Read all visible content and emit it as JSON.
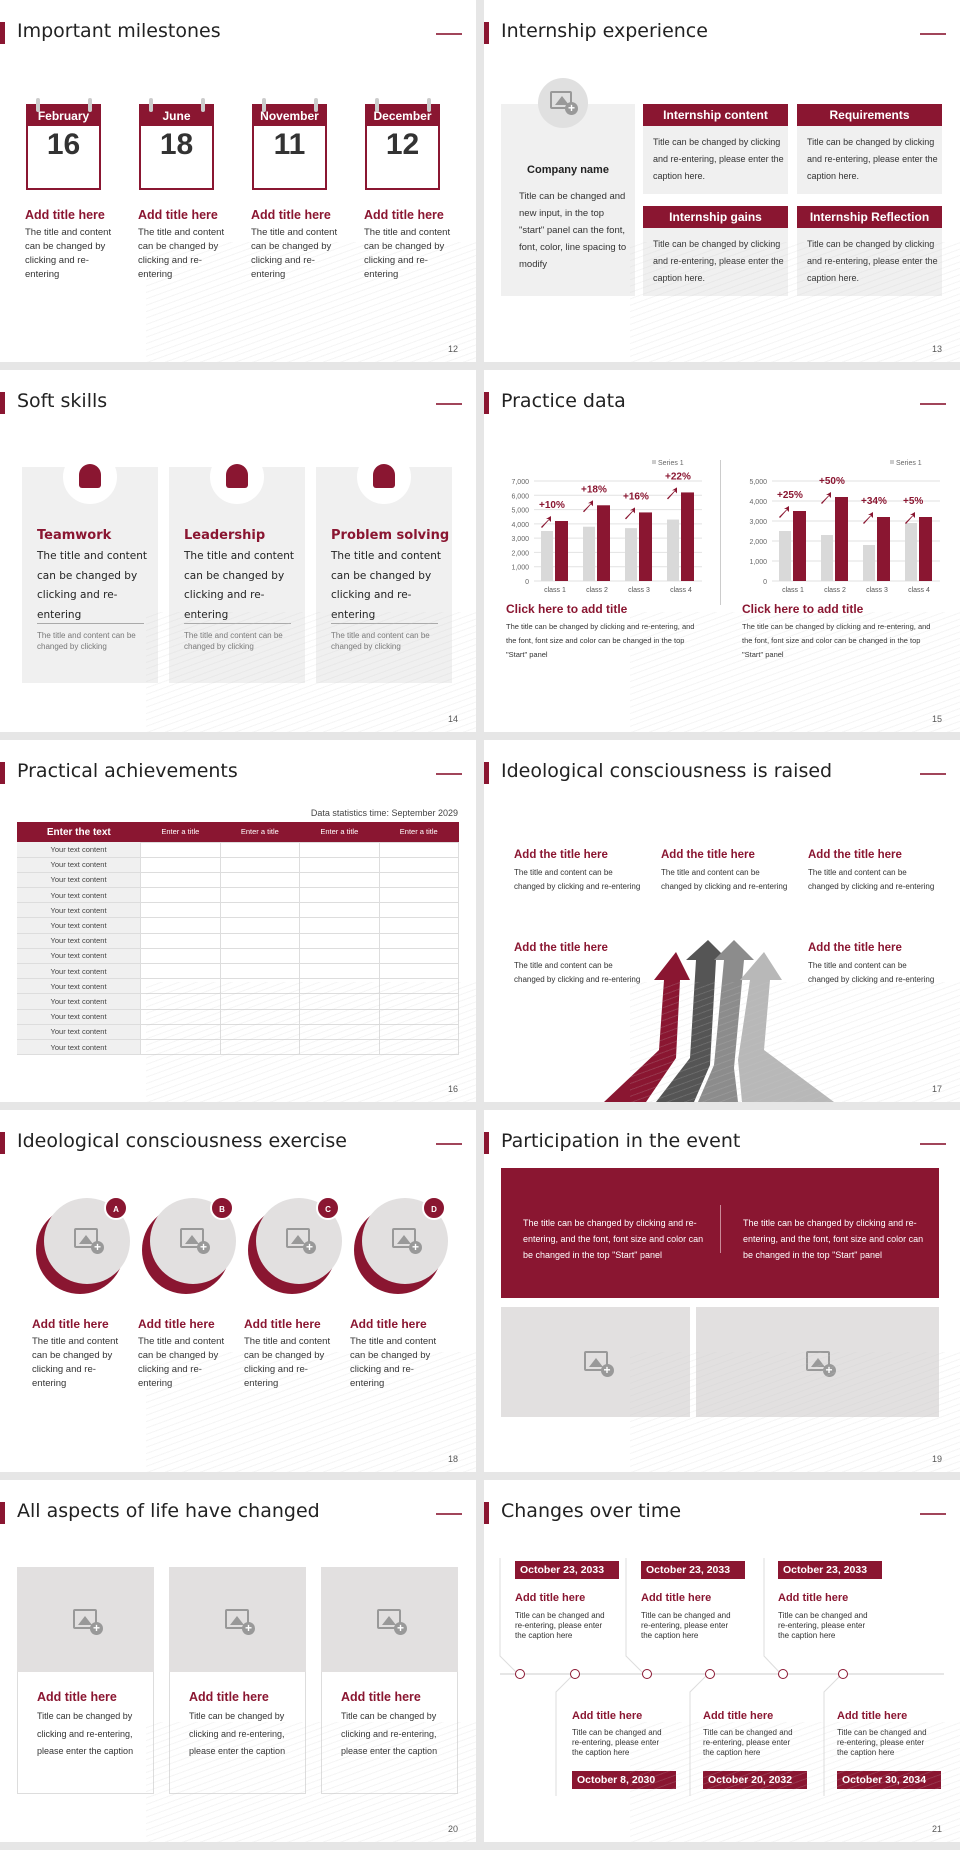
{
  "colors": {
    "accent": "#8a1631",
    "grey": "#d9d9d9",
    "panel": "#f0f0f0"
  },
  "slides": {
    "s12": {
      "title": "Important milestones",
      "page": "12",
      "items": [
        {
          "month": "February",
          "day": "16",
          "heading": "Add title here",
          "text": "The title and content can be changed by clicking and re-entering"
        },
        {
          "month": "June",
          "day": "18",
          "heading": "Add title here",
          "text": "The title and content can be changed by clicking and re-entering"
        },
        {
          "month": "November",
          "day": "11",
          "heading": "Add title here",
          "text": "The title and content can be changed by clicking and re-entering"
        },
        {
          "month": "December",
          "day": "12",
          "heading": "Add title here",
          "text": "The title and content can be changed by clicking and re-entering"
        }
      ]
    },
    "s13": {
      "title": "Internship experience",
      "page": "13",
      "company": "Company name",
      "company_text": "Title can be changed and new input, in the top \"start\" panel can the font, font, color, line spacing to modify",
      "cards": [
        {
          "label": "Internship content",
          "text": "Title can be changed by clicking and re-entering, please enter the caption here."
        },
        {
          "label": "Requirements",
          "text": "Title can be changed by clicking and re-entering, please enter the caption here."
        },
        {
          "label": "Internship gains",
          "text": "Title can be changed by clicking and re-entering, please enter the caption here."
        },
        {
          "label": "Internship Reflection",
          "text": "Title can be changed by clicking and re-entering, please enter the caption here."
        }
      ]
    },
    "s14": {
      "title": "Soft skills",
      "page": "14",
      "cards": [
        {
          "icon": "team-star-icon",
          "heading": "Teamwork",
          "text": "The title and content can be changed by clicking and re-entering",
          "note": "The title and content can be changed by clicking"
        },
        {
          "icon": "podium-speaker-icon",
          "heading": "Leadership",
          "text": "The title and content can be changed by clicking and re-entering",
          "note": "The title and content can be changed by clicking"
        },
        {
          "icon": "person-question-icon",
          "heading": "Problem solving",
          "text": "The title and content can be changed by clicking and re-entering",
          "note": "The title and content can be changed by clicking"
        }
      ]
    },
    "s15": {
      "title": "Practice data",
      "page": "15",
      "blocks": [
        {
          "heading": "Click here to add title",
          "text": "The title can be changed by clicking and re-entering, and the font, font size and color can be changed in the top \"Start\" panel"
        },
        {
          "heading": "Click here to add title",
          "text": "The title can be changed by clicking and re-entering, and the font, font size and color can be changed in the top \"Start\" panel"
        }
      ]
    },
    "s16": {
      "title": "Practical achievements",
      "page": "16",
      "caption": "Data statistics time: September 2029",
      "headers": [
        "Enter the text",
        "Enter a title",
        "Enter a title",
        "Enter a title",
        "Enter a title"
      ],
      "rows": [
        "Your text content",
        "Your text content",
        "Your text content",
        "Your text content",
        "Your text content",
        "Your text content",
        "Your text content",
        "Your text content",
        "Your text content",
        "Your text content",
        "Your text content",
        "Your text content",
        "Your text content",
        "Your text content"
      ]
    },
    "s17": {
      "title": "Ideological consciousness is raised",
      "page": "17",
      "items": [
        {
          "heading": "Add the title here",
          "text": "The title and content can be changed by clicking and re-entering"
        },
        {
          "heading": "Add the title here",
          "text": "The title and content can be changed by clicking and re-entering"
        },
        {
          "heading": "Add the title here",
          "text": "The title and content can be changed by clicking and re-entering"
        },
        {
          "heading": "Add the title here",
          "text": "The title and content can be changed by clicking and re-entering"
        },
        {
          "heading": "Add the title here",
          "text": "The title and content can be changed by clicking and re-entering"
        }
      ]
    },
    "s18": {
      "title": "Ideological consciousness exercise",
      "page": "18",
      "items": [
        {
          "badge": "A",
          "heading": "Add title here",
          "text": "The title and content can be changed by clicking and re-entering"
        },
        {
          "badge": "B",
          "heading": "Add title here",
          "text": "The title and content can be changed by clicking and re-entering"
        },
        {
          "badge": "C",
          "heading": "Add title here",
          "text": "The title and content can be changed by clicking and re-entering"
        },
        {
          "badge": "D",
          "heading": "Add title here",
          "text": "The title and content can be changed by clicking and re-entering"
        }
      ]
    },
    "s19": {
      "title": "Participation in the event",
      "page": "19",
      "banner": [
        "The title can be changed by clicking and re-entering, and the font, font size and color can be changed in the top \"Start\" panel",
        "The title can be changed by clicking and re-entering, and the font, font size and color can be changed in the top \"Start\" panel"
      ]
    },
    "s20": {
      "title": "All aspects of life have changed",
      "page": "20",
      "cards": [
        {
          "heading": "Add title here",
          "text": "Title can be changed by clicking and re-entering, please enter the caption"
        },
        {
          "heading": "Add title here",
          "text": "Title can be changed by clicking and re-entering, please enter the caption"
        },
        {
          "heading": "Add title here",
          "text": "Title can be changed by clicking and re-entering, please enter the caption"
        }
      ]
    },
    "s21": {
      "title": "Changes over time",
      "page": "21",
      "top": [
        {
          "date": "October 23, 2033",
          "heading": "Add title here",
          "text": "Title can be changed and re-entering, please enter the caption here"
        },
        {
          "date": "October 23, 2033",
          "heading": "Add title here",
          "text": "Title can be changed and re-entering, please enter the caption here"
        },
        {
          "date": "October 23, 2033",
          "heading": "Add title here",
          "text": "Title can be changed and re-entering, please enter the caption here"
        }
      ],
      "bottom": [
        {
          "date": "October 8, 2030",
          "heading": "Add title here",
          "text": "Title can be changed and re-entering, please enter the caption here"
        },
        {
          "date": "October 20, 2032",
          "heading": "Add title here",
          "text": "Title can be changed and re-entering, please enter the caption here"
        },
        {
          "date": "October 30, 2034",
          "heading": "Add title here",
          "text": "Title can be changed and re-entering, please enter the caption here"
        }
      ]
    }
  },
  "chart_data": [
    {
      "type": "bar",
      "legend": "Series 1",
      "legend_position": "top-right",
      "categories": [
        "class 1",
        "class 2",
        "class 3",
        "class 4"
      ],
      "ylim": [
        0,
        7000
      ],
      "yticks": [
        "0",
        "1,000",
        "2,000",
        "3,000",
        "4,000",
        "5,000",
        "6,000",
        "7,000"
      ],
      "grid": true,
      "series": [
        {
          "name": "Series 1",
          "values": [
            3500,
            3800,
            3700,
            4300
          ]
        },
        {
          "values": [
            4200,
            5300,
            4800,
            6200
          ]
        }
      ],
      "annotations": [
        "+10%",
        "+18%",
        "+16%",
        "+22%"
      ]
    },
    {
      "type": "bar",
      "legend": "Series 1",
      "legend_position": "top-right",
      "categories": [
        "class 1",
        "class 2",
        "class 3",
        "class 4"
      ],
      "ylim": [
        0,
        5000
      ],
      "yticks": [
        "0",
        "1,000",
        "2,000",
        "3,000",
        "4,000",
        "5,000"
      ],
      "grid": true,
      "series": [
        {
          "name": "Series 1",
          "values": [
            2500,
            2300,
            1800,
            2900
          ]
        },
        {
          "values": [
            3500,
            4200,
            3200,
            3200
          ]
        }
      ],
      "annotations": [
        "+25%",
        "+50%",
        "+34%",
        "+5%"
      ]
    }
  ]
}
